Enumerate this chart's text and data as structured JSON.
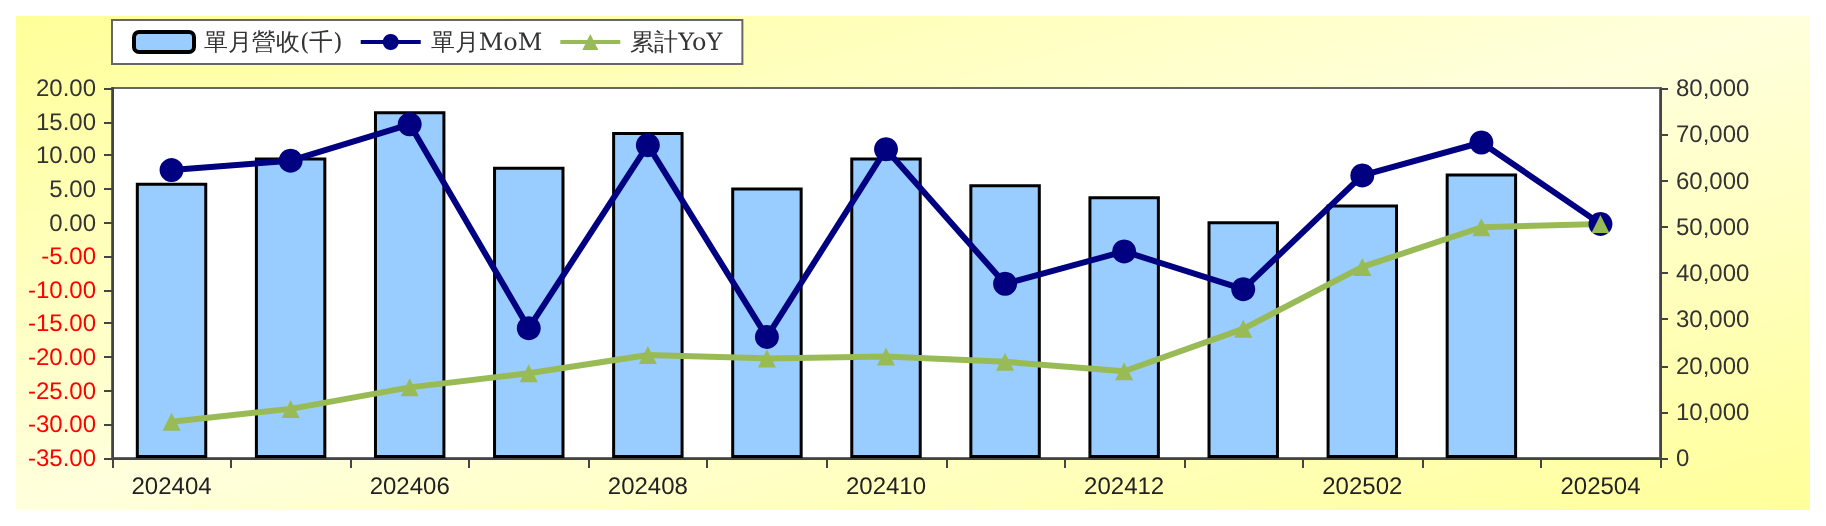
{
  "chart_data": {
    "type": "bar",
    "categories": [
      "202404",
      null,
      "202406",
      null,
      "202408",
      null,
      "202410",
      null,
      "202412",
      null,
      "202502",
      null,
      "202504"
    ],
    "series": [
      {
        "name": "單月營收(千)",
        "axis": "y2",
        "color": "#99ccff",
        "values": [
          59500,
          65000,
          75000,
          63000,
          70500,
          58500,
          65000,
          59200,
          56600,
          51200,
          54800,
          61500,
          null
        ]
      },
      {
        "name": "單月MoM",
        "type": "line",
        "marker": "circle",
        "color": "#000080",
        "values": [
          7.8,
          9.2,
          14.6,
          -15.7,
          11.5,
          -17.0,
          10.9,
          -9.1,
          -4.3,
          -9.9,
          7.0,
          11.9,
          -0.2
        ]
      },
      {
        "name": "累計YoY",
        "type": "line",
        "marker": "triangle",
        "color": "#99bb55",
        "values": [
          -29.6,
          -27.7,
          -24.5,
          -22.4,
          -19.7,
          -20.2,
          -19.9,
          -20.7,
          -22.1,
          -15.8,
          -6.6,
          -0.7,
          -0.2
        ]
      }
    ],
    "ylim": [
      -35,
      20
    ],
    "yticks": [
      {
        "value": -35,
        "label": "-35.00"
      },
      {
        "value": -30,
        "label": "-30.00"
      },
      {
        "value": -25,
        "label": "-25.00"
      },
      {
        "value": -20,
        "label": "-20.00"
      },
      {
        "value": -15,
        "label": "-15.00"
      },
      {
        "value": -10,
        "label": "-10.00"
      },
      {
        "value": -5,
        "label": "-5.00"
      },
      {
        "value": 0,
        "label": "0.00"
      },
      {
        "value": 5,
        "label": "5.00"
      },
      {
        "value": 10,
        "label": "10.00"
      },
      {
        "value": 15,
        "label": "15.00"
      },
      {
        "value": 20,
        "label": "20.00"
      }
    ],
    "y2lim": [
      0,
      80000
    ],
    "y2ticks": [
      0,
      {
        "value": 10000,
        "label": "10,000"
      },
      {
        "value": 20000,
        "label": "20,000"
      },
      {
        "value": 30000,
        "label": "30,000"
      },
      {
        "value": 40000,
        "label": "40,000"
      },
      {
        "value": 50000,
        "label": "50,000"
      },
      {
        "value": 60000,
        "label": "60,000"
      },
      {
        "value": 70000,
        "label": "70,000"
      },
      {
        "value": 80000,
        "label": "80,000"
      }
    ],
    "grid": false,
    "legend": "top left"
  }
}
